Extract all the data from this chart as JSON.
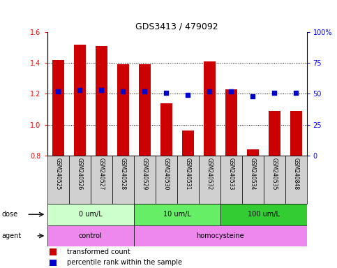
{
  "title": "GDS3413 / 479092",
  "samples": [
    "GSM240525",
    "GSM240526",
    "GSM240527",
    "GSM240528",
    "GSM240529",
    "GSM240530",
    "GSM240531",
    "GSM240532",
    "GSM240533",
    "GSM240534",
    "GSM240535",
    "GSM240848"
  ],
  "transformed_count": [
    1.42,
    1.52,
    1.51,
    1.39,
    1.39,
    1.14,
    0.96,
    1.41,
    1.23,
    0.84,
    1.09,
    1.09
  ],
  "percentile_rank": [
    52,
    53,
    53,
    52,
    52,
    51,
    49,
    52,
    52,
    48,
    51,
    51
  ],
  "ylim_left": [
    0.8,
    1.6
  ],
  "ylim_right": [
    0,
    100
  ],
  "yticks_left": [
    0.8,
    1.0,
    1.2,
    1.4,
    1.6
  ],
  "yticks_right": [
    0,
    25,
    50,
    75,
    100
  ],
  "bar_color": "#cc0000",
  "dot_color": "#0000cc",
  "bar_bottom": 0.8,
  "dot_size": 18,
  "grid_dotted_at": [
    1.0,
    1.2,
    1.4
  ],
  "dose_groups": [
    {
      "label": "0 um/L",
      "start": 0,
      "end": 3,
      "color": "#ccffcc"
    },
    {
      "label": "10 um/L",
      "start": 4,
      "end": 7,
      "color": "#66ee66"
    },
    {
      "label": "100 um/L",
      "start": 8,
      "end": 11,
      "color": "#33cc33"
    }
  ],
  "agent_groups": [
    {
      "label": "control",
      "start": 0,
      "end": 3,
      "color": "#ee88ee"
    },
    {
      "label": "homocysteine",
      "start": 4,
      "end": 11,
      "color": "#ee88ee"
    }
  ],
  "dose_label": "dose",
  "agent_label": "agent",
  "legend_bar_label": "transformed count",
  "legend_dot_label": "percentile rank within the sample",
  "background_color": "#ffffff",
  "tick_label_area_color": "#d0d0d0",
  "title_fontsize": 9,
  "axis_fontsize": 7,
  "label_fontsize": 7,
  "sample_fontsize": 5.5
}
